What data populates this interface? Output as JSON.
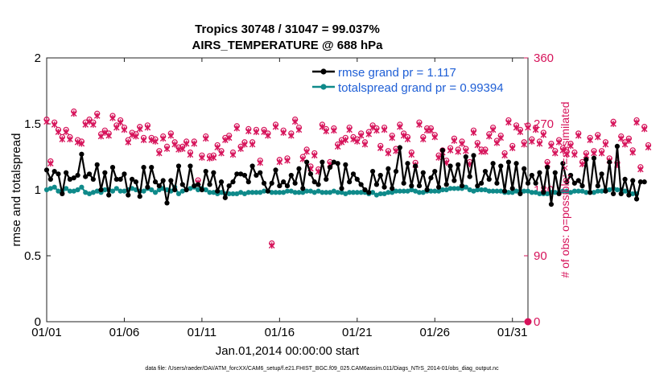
{
  "chart_data": {
    "type": "line",
    "title_line1": "Tropics 30748 / 31047 = 99.037%",
    "title_line2": "AIRS_TEMPERATURE @ 688 hPa",
    "xlabel": "Jan.01,2014 00:00:00 start",
    "ylabel_left": "rmse and totalspread",
    "ylabel_right": "# of obs: o=possible; ×=assimilated",
    "footer": "data file: /Users/raeder/DAI/ATM_forcXX/CAM6_setup/f.e21.FHIST_BGC.f09_025.CAM6assim.011/Diags_NTrS_2014-01/obs_diag_output.nc",
    "xlim": [
      1.0,
      32.0
    ],
    "ylim_left": [
      0,
      2
    ],
    "ylim_right": [
      0,
      360
    ],
    "x_ticks": [
      1,
      6,
      11,
      16,
      21,
      26,
      31
    ],
    "x_tick_labels": [
      "01/01",
      "01/06",
      "01/11",
      "01/16",
      "01/21",
      "01/26",
      "01/31"
    ],
    "y_left_ticks": [
      0,
      0.5,
      1,
      1.5,
      2
    ],
    "y_left_tick_labels": [
      "0",
      "0.5",
      "1",
      "1.5",
      "2"
    ],
    "y_right_ticks": [
      0,
      90,
      180,
      270,
      360
    ],
    "y_right_tick_labels": [
      "0",
      "90",
      "180",
      "270",
      "360"
    ],
    "legend": [
      {
        "label": "rmse grand pr = 1.117",
        "color": "#000000"
      },
      {
        "label": "totalspread grand pr = 0.99394",
        "color": "#0f8a8a"
      }
    ],
    "colors": {
      "rmse": "#000000",
      "spread": "#0f8a8a",
      "obs": "#d6135a",
      "axis": "#000000"
    },
    "series": [
      {
        "name": "rmse",
        "x_start": 1.0,
        "x_step": 0.25,
        "values": [
          1.15,
          1.08,
          1.14,
          1.12,
          0.97,
          1.13,
          1.08,
          1.09,
          1.11,
          1.27,
          1.1,
          1.12,
          1.08,
          1.19,
          1.0,
          1.13,
          0.96,
          1.17,
          1.08,
          1.08,
          1.12,
          0.96,
          1.08,
          1.06,
          0.95,
          1.17,
          1.02,
          1.17,
          1.06,
          1.03,
          1.07,
          0.9,
          1.07,
          1.0,
          1.18,
          1.04,
          1.0,
          1.18,
          1.03,
          1.04,
          1.0,
          1.14,
          1.04,
          1.13,
          0.99,
          1.06,
          0.94,
          1.03,
          1.06,
          1.12,
          1.12,
          1.11,
          1.06,
          1.18,
          1.11,
          1.13,
          1.05,
          0.99,
          1.05,
          1.15,
          1.03,
          1.06,
          1.03,
          1.11,
          1.05,
          1.16,
          1.01,
          1.21,
          1.12,
          1.06,
          1.04,
          1.21,
          1.08,
          1.17,
          1.21,
          1.2,
          1.01,
          1.19,
          1.06,
          1.12,
          1.08,
          1.04,
          1.0,
          0.98,
          1.14,
          1.04,
          1.11,
          1.02,
          1.16,
          1.01,
          1.14,
          1.32,
          1.05,
          1.2,
          1.03,
          1.18,
          1.03,
          1.13,
          1.0,
          1.09,
          1.14,
          1.02,
          1.3,
          1.04,
          1.18,
          1.07,
          1.19,
          1.03,
          1.25,
          1.1,
          1.26,
          1.03,
          1.05,
          1.14,
          1.08,
          1.2,
          1.05,
          1.18,
          0.99,
          1.21,
          1.01,
          1.2,
          0.97,
          1.16,
          1.05,
          1.11,
          1.05,
          1.13,
          0.98,
          1.17,
          0.89,
          1.13,
          0.97,
          1.2,
          1.06,
          1.11,
          1.05,
          1.07,
          1.03,
          1.23,
          0.98,
          1.24,
          1.03,
          1.12,
          0.99,
          1.21,
          0.97,
          1.33,
          0.97,
          1.08,
          0.96,
          1.07,
          0.93,
          1.06,
          1.06
        ]
      },
      {
        "name": "totalspread",
        "x_start": 1.0,
        "x_step": 0.25,
        "values": [
          1.0,
          1.01,
          1.02,
          0.99,
          0.99,
          1.01,
          0.99,
          0.99,
          1.0,
          1.02,
          0.98,
          0.97,
          0.98,
          0.99,
          0.98,
          1.0,
          1.0,
          0.99,
          1.01,
          0.99,
          0.99,
          1.0,
          1.01,
          1.0,
          0.99,
          0.99,
          1.01,
          1.0,
          0.98,
          1.0,
          1.01,
          1.0,
          0.99,
          1.02,
          0.97,
          0.99,
          1.0,
          1.01,
          1.02,
          1.0,
          1.01,
          1.0,
          0.98,
          0.98,
          0.97,
          0.98,
          0.97,
          0.97,
          0.97,
          0.97,
          0.98,
          0.97,
          0.98,
          0.98,
          0.98,
          0.98,
          0.99,
          0.99,
          0.98,
          0.98,
          0.98,
          0.98,
          0.99,
          0.99,
          0.98,
          0.98,
          0.98,
          0.99,
          0.99,
          0.98,
          0.99,
          0.98,
          0.98,
          0.98,
          0.99,
          0.98,
          0.98,
          0.97,
          0.98,
          0.98,
          0.98,
          0.98,
          0.98,
          0.97,
          0.98,
          0.96,
          0.97,
          0.97,
          0.98,
          0.98,
          0.99,
          0.99,
          0.99,
          0.99,
          1.0,
          0.99,
          0.98,
          0.98,
          0.99,
          0.99,
          0.99,
          0.99,
          1.0,
          1.0,
          1.01,
          1.01,
          1.01,
          1.01,
          1.02,
          1.0,
          0.99,
          1.0,
          1.0,
          1.0,
          0.99,
          0.99,
          0.99,
          0.99,
          0.98,
          0.98,
          0.98,
          0.99,
          0.99,
          0.99,
          0.99,
          0.98,
          0.98,
          0.97,
          0.97,
          0.97,
          0.98,
          0.98,
          0.98,
          0.99,
          0.99,
          0.98,
          0.99,
          0.99,
          0.99,
          0.98,
          0.98,
          0.98,
          0.99,
          0.99,
          1.0,
          1.0,
          1.01,
          1.0,
          1.0,
          0.99,
          0.98,
          0.97,
          0.97
        ]
      },
      {
        "name": "obs_possible",
        "x_start": 1.0,
        "x_step": 0.25,
        "axis": "right",
        "values": [
          276,
          219,
          272,
          262,
          252,
          262,
          252,
          287,
          248,
          246,
          272,
          276,
          272,
          284,
          256,
          261,
          257,
          281,
          268,
          275,
          265,
          248,
          258,
          256,
          266,
          251,
          268,
          251,
          249,
          233,
          253,
          239,
          257,
          245,
          238,
          239,
          246,
          231,
          246,
          193,
          227,
          253,
          226,
          227,
          241,
          233,
          251,
          254,
          231,
          267,
          239,
          245,
          263,
          245,
          262,
          220,
          262,
          257,
          107,
          269,
          221,
          261,
          223,
          257,
          276,
          265,
          225,
          235,
          212,
          230,
          208,
          269,
          263,
          218,
          264,
          242,
          248,
          251,
          265,
          252,
          249,
          257,
          245,
          259,
          268,
          264,
          240,
          265,
          233,
          254,
          236,
          269,
          257,
          252,
          231,
          217,
          272,
          252,
          264,
          264,
          255,
          227,
          234,
          220,
          237,
          250,
          235,
          246,
          236,
          218,
          261,
          244,
          235,
          235,
          256,
          265,
          247,
          254,
          230,
          275,
          240,
          268,
          262,
          245,
          268,
          249,
          265,
          246,
          258,
          218,
          243,
          233,
          248,
          237,
          232,
          243,
          231,
          257,
          218,
          230,
          251,
          233,
          255,
          233,
          245,
          223,
          273,
          217,
          253,
          245,
          250,
          234,
          275,
          211,
          266,
          241
        ]
      },
      {
        "name": "obs_assimilated",
        "x_start": 1.0,
        "x_step": 0.25,
        "axis": "right",
        "values": [
          273,
          216,
          269,
          259,
          249,
          259,
          249,
          284,
          245,
          243,
          269,
          273,
          269,
          281,
          253,
          258,
          254,
          278,
          265,
          272,
          262,
          245,
          255,
          253,
          263,
          248,
          265,
          248,
          246,
          230,
          250,
          236,
          254,
          242,
          235,
          236,
          243,
          228,
          243,
          190,
          224,
          250,
          223,
          224,
          238,
          230,
          248,
          251,
          228,
          264,
          236,
          242,
          260,
          242,
          259,
          217,
          259,
          254,
          104,
          266,
          218,
          258,
          220,
          254,
          273,
          262,
          222,
          232,
          209,
          227,
          205,
          266,
          260,
          215,
          261,
          239,
          245,
          248,
          262,
          249,
          246,
          254,
          242,
          256,
          265,
          261,
          237,
          262,
          230,
          251,
          233,
          266,
          254,
          249,
          228,
          214,
          269,
          249,
          261,
          261,
          252,
          224,
          231,
          217,
          234,
          247,
          232,
          243,
          233,
          215,
          258,
          241,
          232,
          232,
          253,
          262,
          244,
          251,
          227,
          272,
          237,
          265,
          259,
          242,
          265,
          246,
          262,
          243,
          255,
          215,
          240,
          230,
          245,
          234,
          229,
          240,
          228,
          254,
          215,
          227,
          248,
          230,
          252,
          230,
          242,
          220,
          270,
          214,
          250,
          242,
          247,
          231,
          272,
          208,
          263,
          238
        ]
      }
    ]
  }
}
